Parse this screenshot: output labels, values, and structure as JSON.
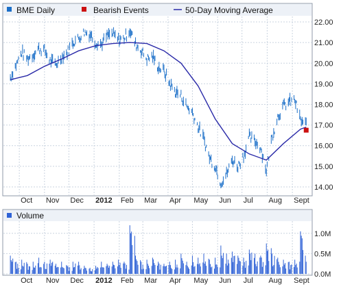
{
  "colors": {
    "price": "#1b6fc8",
    "moving_average": "#2a2aa8",
    "bearish": "#cc1111",
    "volume": "#2f62d6",
    "grid": "#c9d3df",
    "frame": "#8f9aa8",
    "legend_bg": "#edf1f7"
  },
  "chart_data": [
    {
      "type": "line",
      "legend": [
        "BME Daily",
        "Bearish Events",
        "50-Day Moving Average"
      ],
      "legend_placement": "top",
      "x_tick_labels": [
        "Oct",
        "Nov",
        "Dec",
        "2012",
        "Feb",
        "Mar",
        "Apr",
        "May",
        "Jun",
        "Jul",
        "Aug",
        "Sept"
      ],
      "y_tick_labels": [
        "14.00",
        "15.00",
        "16.00",
        "17.00",
        "18.00",
        "19.00",
        "20.00",
        "21.00",
        "22.00"
      ],
      "ylim": [
        13.8,
        22.2
      ],
      "y_axis_side": "right",
      "grid": true,
      "series": [
        {
          "name": "BME Daily",
          "style": "daily high-low bars",
          "x": [
            "2011-09-20",
            "2011-09-27",
            "2011-10-04",
            "2011-10-11",
            "2011-10-18",
            "2011-10-25",
            "2011-11-01",
            "2011-11-08",
            "2011-11-15",
            "2011-11-22",
            "2011-11-29",
            "2011-12-06",
            "2011-12-13",
            "2011-12-20",
            "2011-12-27",
            "2012-01-03",
            "2012-01-10",
            "2012-01-17",
            "2012-01-24",
            "2012-01-31",
            "2012-02-07",
            "2012-02-14",
            "2012-02-21",
            "2012-02-28",
            "2012-03-06",
            "2012-03-13",
            "2012-03-20",
            "2012-03-27",
            "2012-04-03",
            "2012-04-10",
            "2012-04-17",
            "2012-04-24",
            "2012-05-01",
            "2012-05-08",
            "2012-05-15",
            "2012-05-22",
            "2012-05-29",
            "2012-06-05",
            "2012-06-12",
            "2012-06-19",
            "2012-06-26",
            "2012-07-03",
            "2012-07-10",
            "2012-07-17",
            "2012-07-24",
            "2012-07-31",
            "2012-08-07",
            "2012-08-14",
            "2012-08-21",
            "2012-08-28",
            "2012-09-04",
            "2012-09-11",
            "2012-09-18"
          ],
          "y": [
            19.3,
            19.9,
            20.5,
            20.2,
            20.4,
            20.7,
            20.6,
            20.1,
            19.9,
            20.3,
            20.5,
            21.0,
            21.2,
            21.5,
            21.4,
            21.0,
            20.9,
            21.3,
            21.4,
            21.1,
            21.2,
            21.6,
            20.9,
            20.6,
            20.2,
            20.3,
            19.8,
            19.6,
            19.0,
            18.6,
            18.4,
            17.9,
            17.6,
            16.9,
            16.3,
            15.4,
            15.0,
            14.2,
            14.6,
            15.3,
            15.0,
            15.5,
            16.4,
            16.2,
            15.9,
            14.8,
            16.4,
            17.4,
            17.9,
            18.1,
            18.2,
            17.2,
            17.0
          ]
        },
        {
          "name": "50-Day Moving Average",
          "x": [
            "2011-09-20",
            "2011-10-11",
            "2011-11-01",
            "2011-11-22",
            "2011-12-13",
            "2012-01-03",
            "2012-01-24",
            "2012-02-14",
            "2012-03-06",
            "2012-03-27",
            "2012-04-17",
            "2012-05-08",
            "2012-05-29",
            "2012-06-19",
            "2012-07-10",
            "2012-07-31",
            "2012-08-21",
            "2012-09-11",
            "2012-09-18"
          ],
          "y": [
            19.2,
            19.4,
            19.85,
            20.2,
            20.6,
            20.85,
            20.95,
            21.0,
            20.95,
            20.6,
            20.0,
            18.9,
            17.3,
            16.1,
            15.6,
            15.3,
            16.1,
            16.8,
            16.9
          ]
        },
        {
          "name": "Bearish Events",
          "x": [
            "2012-09-18"
          ],
          "y": [
            16.75
          ]
        }
      ]
    },
    {
      "type": "bar",
      "legend": [
        "Volume"
      ],
      "x_tick_labels": [
        "Oct",
        "Nov",
        "Dec",
        "2012",
        "Feb",
        "Mar",
        "Apr",
        "May",
        "Jun",
        "Jul",
        "Aug",
        "Sept"
      ],
      "y_tick_labels": [
        "0.0M",
        "0.5M",
        "1.0M"
      ],
      "ylim": [
        0,
        1.25
      ],
      "y_axis_side": "right",
      "grid": true,
      "series": [
        {
          "name": "Volume",
          "unit": "M",
          "x": [
            "2011-09-20",
            "2011-09-27",
            "2011-10-04",
            "2011-10-11",
            "2011-10-18",
            "2011-10-25",
            "2011-11-01",
            "2011-11-08",
            "2011-11-15",
            "2011-11-22",
            "2011-11-29",
            "2011-12-06",
            "2011-12-13",
            "2011-12-20",
            "2011-12-27",
            "2012-01-03",
            "2012-01-10",
            "2012-01-17",
            "2012-01-24",
            "2012-01-31",
            "2012-02-07",
            "2012-02-14",
            "2012-02-21",
            "2012-02-28",
            "2012-03-06",
            "2012-03-13",
            "2012-03-20",
            "2012-03-27",
            "2012-04-03",
            "2012-04-10",
            "2012-04-17",
            "2012-04-24",
            "2012-05-01",
            "2012-05-08",
            "2012-05-15",
            "2012-05-22",
            "2012-05-29",
            "2012-06-05",
            "2012-06-12",
            "2012-06-19",
            "2012-06-26",
            "2012-07-03",
            "2012-07-10",
            "2012-07-17",
            "2012-07-24",
            "2012-07-31",
            "2012-08-07",
            "2012-08-14",
            "2012-08-21",
            "2012-08-28",
            "2012-09-04",
            "2012-09-11",
            "2012-09-18"
          ],
          "values": [
            0.45,
            0.3,
            0.35,
            0.25,
            0.3,
            0.4,
            0.3,
            0.35,
            0.25,
            0.3,
            0.2,
            0.3,
            0.3,
            0.2,
            0.15,
            0.2,
            0.3,
            0.25,
            0.3,
            0.35,
            0.3,
            1.2,
            0.45,
            0.3,
            0.35,
            0.4,
            0.3,
            0.25,
            0.3,
            0.35,
            0.5,
            0.3,
            0.45,
            0.4,
            0.5,
            0.35,
            0.4,
            0.7,
            0.5,
            0.55,
            0.45,
            0.4,
            0.6,
            0.5,
            0.45,
            0.75,
            0.5,
            0.4,
            0.35,
            0.3,
            0.35,
            1.05,
            0.3
          ]
        }
      ]
    }
  ]
}
